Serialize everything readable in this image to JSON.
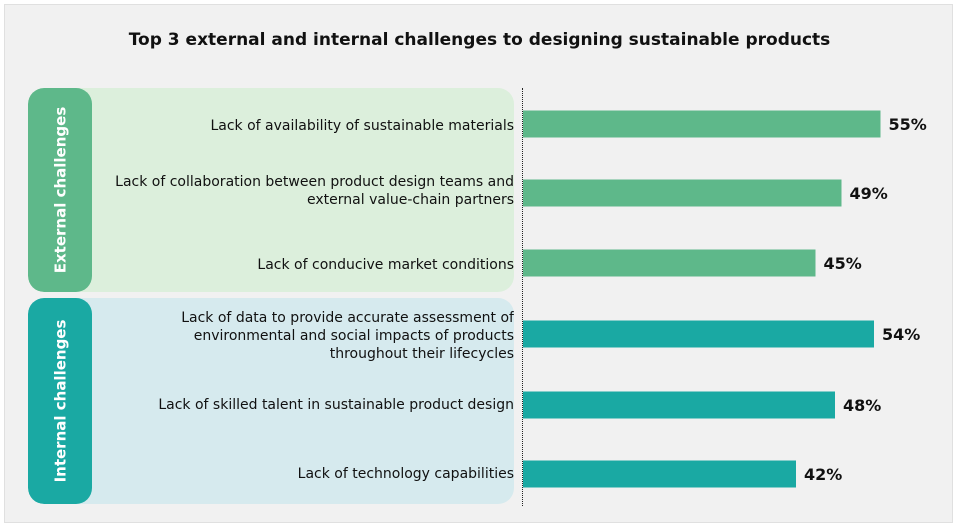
{
  "chart_data": {
    "type": "bar",
    "orientation": "horizontal",
    "title": "Top 3 external and internal challenges to designing sustainable products",
    "groups": [
      {
        "name": "External challenges",
        "color": "#5eb88a",
        "categories": [
          "Lack of availability of sustainable materials",
          "Lack of collaboration between product design teams and external value-chain partners",
          "Lack of conducive market conditions"
        ],
        "values": [
          55,
          49,
          45
        ],
        "labels": [
          "55%",
          "49%",
          "45%"
        ]
      },
      {
        "name": "Internal challenges",
        "color": "#1aa9a3",
        "categories": [
          "Lack of data to provide accurate assessment of environmental and social impacts of products throughout their lifecycles",
          "Lack of skilled talent in sustainable product design",
          "Lack of technology capabilities"
        ],
        "values": [
          54,
          48,
          42
        ],
        "labels": [
          "54%",
          "48%",
          "42%"
        ]
      }
    ],
    "xlim": [
      0,
      65
    ],
    "grid": false,
    "legend": "none"
  },
  "colors": {
    "external": "#5eb88a",
    "internal": "#1aa9a3",
    "external_panel": "#dcefdc",
    "internal_panel": "#d6eaee"
  }
}
